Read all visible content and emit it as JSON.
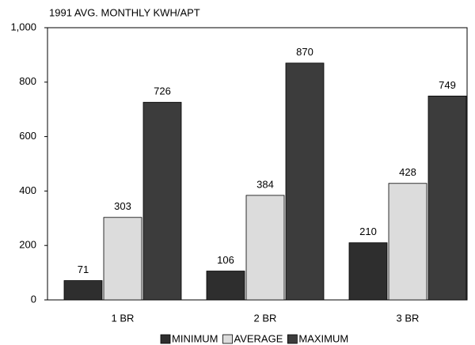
{
  "chart_data": {
    "type": "bar",
    "title": "1991 AVG. MONTHLY KWH/APT",
    "categories": [
      "1 BR",
      "2 BR",
      "3 BR"
    ],
    "series": [
      {
        "name": "MINIMUM",
        "color": "#2e2e2e",
        "values": [
          71,
          106,
          210
        ]
      },
      {
        "name": "AVERAGE",
        "color": "#dcdcdc",
        "values": [
          303,
          384,
          428
        ]
      },
      {
        "name": "MAXIMUM",
        "color": "#3c3c3c",
        "values": [
          726,
          870,
          749
        ]
      }
    ],
    "ylim": [
      0,
      1000
    ],
    "yticks": [
      0,
      200,
      400,
      600,
      800,
      {
        "value": 1000,
        "label": "1,000"
      }
    ],
    "grid": false
  }
}
